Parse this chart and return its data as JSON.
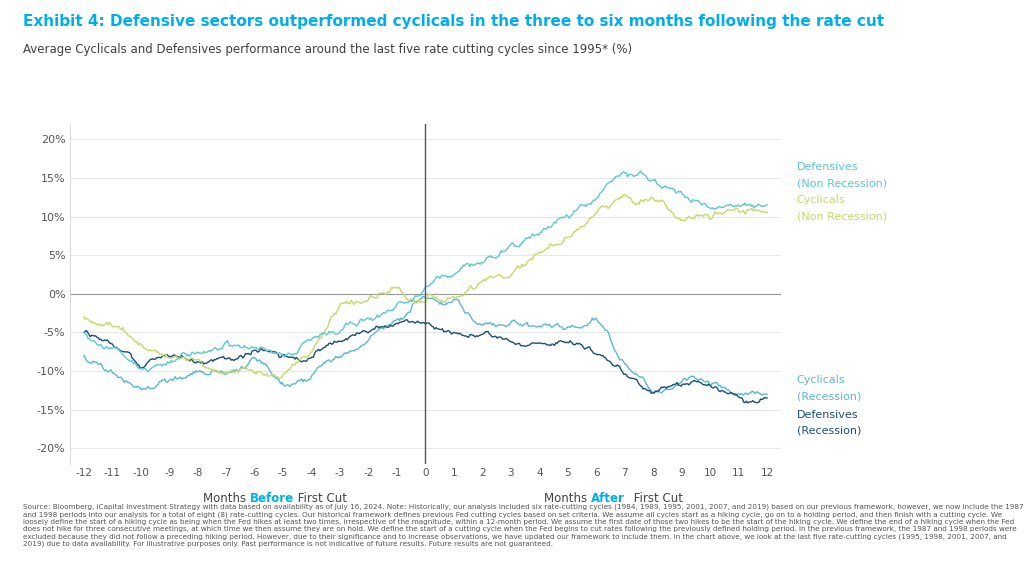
{
  "title": "Exhibit 4: Defensive sectors outperformed cyclicals in the three to six months following the rate cut",
  "subtitle": "Average Cyclicals and Defensives performance around the last five rate cutting cycles since 1995* (%)",
  "title_color": "#00AEEF",
  "subtitle_color": "#404040",
  "colors": {
    "defensives_non_rec": "#5BC8D5",
    "cyclicals_non_rec": "#C5D96A",
    "cyclicals_rec": "#5BB8D4",
    "defensives_rec": "#1A4F7A"
  },
  "ylim": [
    -0.22,
    0.22
  ],
  "yticks": [
    -0.2,
    -0.15,
    -0.1,
    -0.05,
    0.0,
    0.05,
    0.1,
    0.15,
    0.2
  ],
  "background_color": "#FFFFFF",
  "footnote": "Source: Bloomberg, iCapital Investment Strategy with data based on availability as of July 16, 2024. Note: Historically, our analysis included six rate-cutting cycles (1984, 1989, 1995, 2001, 2007, and 2019) based on our previous framework, however, we now include the 1987 and 1998 periods into our analysis for a total of eight (8) rate-cutting cycles. Our historical framework defines previous Fed cutting cycles based on set criteria. We assume all cycles start as a hiking cycle, go on to a holding period, and then finish with a cutting cycle. We loosely define the start of a hiking cycle as being when the Fed hikes at least two times, irrespective of the magnitude, within a 12-month period. We assume the first date of those two hikes to be the start of the hiking cycle. We define the end of a hiking cycle when the Fed does not hike for three consecutive meetings, at which time we then assume they are on hold. We define the start of a cutting cycle when the Fed begins to cut rates following the previously defined holding period. In the previous framework, the 1987 and 1998 periods were excluded because they did not follow a preceding hiking period. However, due to their significance and to increase observations, we have updated our framework to include them. In the chart above, we look at the last five rate-cutting cycles (1995, 1998, 2001, 2007, and 2019) due to data availability. For illustrative purposes only. Past performance is not indicative of future results. Future results are not guaranteed."
}
